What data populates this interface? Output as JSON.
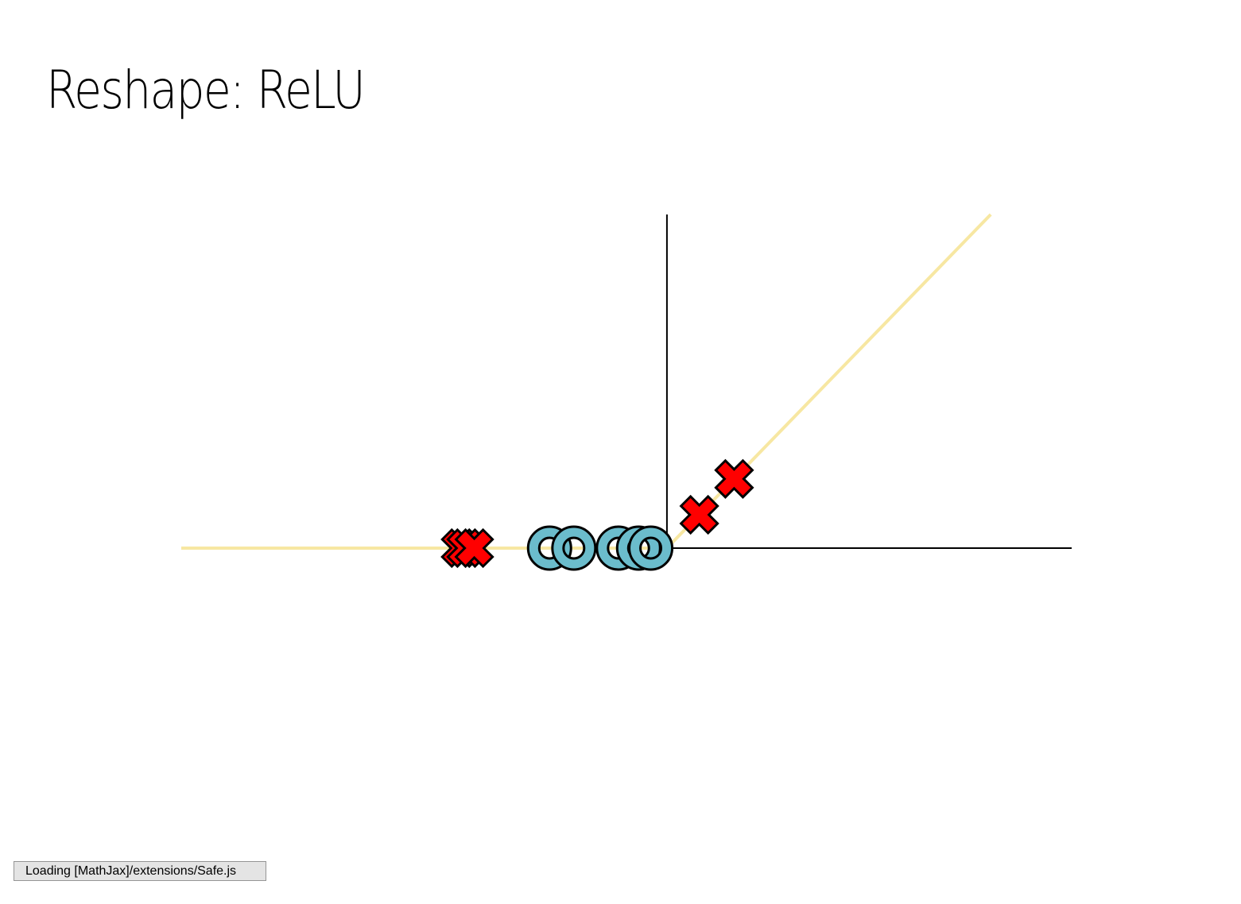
{
  "slide": {
    "title": "Reshape: ReLU"
  },
  "status_bar": {
    "message": "Loading [MathJax]/extensions/Safe.js"
  },
  "colors": {
    "relu_line": "#f7e7a2",
    "axis": "#000000",
    "x_marker_fill": "#ff0000",
    "o_marker_fill": "#6bbccc",
    "marker_stroke": "#000000"
  },
  "chart_data": {
    "type": "scatter",
    "function": "relu",
    "xlim": [
      -6,
      5
    ],
    "ylim": [
      -4,
      4
    ],
    "grid": false,
    "series": [
      {
        "marker": "x",
        "points": [
          [
            -2.55,
            0
          ],
          [
            -2.48,
            0
          ],
          [
            -2.38,
            0
          ],
          [
            0.4,
            0.4
          ],
          [
            0.83,
            0.83
          ]
        ]
      },
      {
        "marker": "o",
        "points": [
          [
            -1.45,
            0
          ],
          [
            -1.15,
            0
          ],
          [
            -0.6,
            0
          ],
          [
            -0.35,
            0
          ],
          [
            -0.2,
            0
          ]
        ]
      }
    ]
  }
}
